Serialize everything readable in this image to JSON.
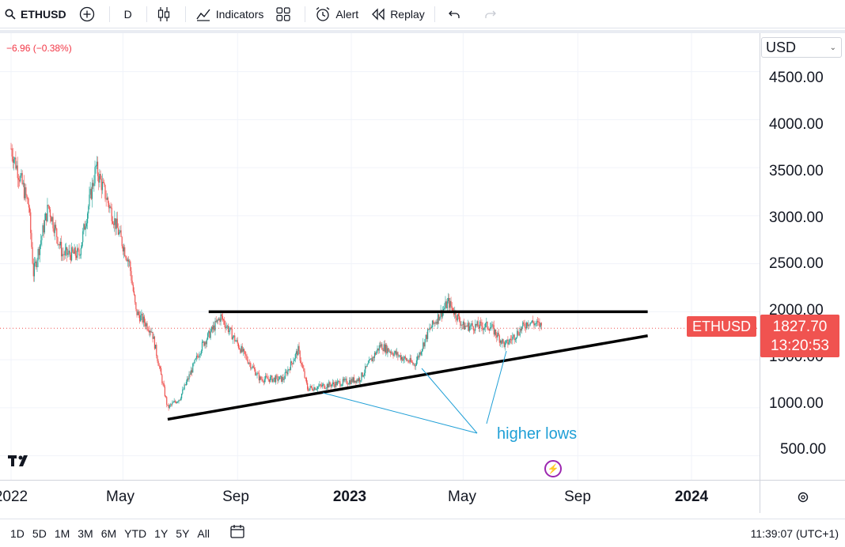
{
  "toolbar": {
    "symbol": "ETHUSD",
    "interval": "D",
    "indicators_label": "Indicators",
    "alert_label": "Alert",
    "replay_label": "Replay"
  },
  "change_label": "−6.96 (−0.38%)",
  "currency": "USD",
  "price_axis_labels": [
    "4500.00",
    "4000.00",
    "3500.00",
    "3000.00",
    "2500.00",
    "2000.00",
    "1500.00",
    "1000.00",
    "500.00"
  ],
  "time_axis_labels": [
    "2022",
    "May",
    "Sep",
    "2023",
    "May",
    "Sep",
    "2024"
  ],
  "symbol_badge": "ETHUSD",
  "last_price": "1827.70",
  "countdown": "13:20:53",
  "annotation": "higher lows",
  "logo_text": "TV",
  "date_ranges": [
    "1D",
    "5D",
    "1M",
    "3M",
    "6M",
    "YTD",
    "1Y",
    "5Y",
    "All"
  ],
  "clock": "11:39:07 (UTC+1)",
  "colors": {
    "up": "#26a69a",
    "down": "#ef5350",
    "badge": "#f05350",
    "annotation": "#1f9fd6"
  },
  "chart_data": {
    "type": "candlestick",
    "ylim": [
      250,
      4900
    ],
    "y_ticks": [
      500,
      1000,
      1500,
      2000,
      2500,
      3000,
      3500,
      4000,
      4500
    ],
    "last_price": 1827.7,
    "approx_close_path": [
      [
        "2022-01-01",
        3700
      ],
      [
        "2022-01-20",
        3100
      ],
      [
        "2022-01-25",
        2400
      ],
      [
        "2022-02-10",
        3100
      ],
      [
        "2022-02-25",
        2600
      ],
      [
        "2022-03-15",
        2600
      ],
      [
        "2022-04-02",
        3500
      ],
      [
        "2022-04-20",
        3000
      ],
      [
        "2022-05-08",
        2500
      ],
      [
        "2022-05-15",
        2000
      ],
      [
        "2022-06-01",
        1800
      ],
      [
        "2022-06-18",
        1000
      ],
      [
        "2022-07-01",
        1100
      ],
      [
        "2022-07-25",
        1650
      ],
      [
        "2022-08-14",
        1950
      ],
      [
        "2022-09-05",
        1600
      ],
      [
        "2022-09-25",
        1300
      ],
      [
        "2022-10-20",
        1300
      ],
      [
        "2022-11-05",
        1600
      ],
      [
        "2022-11-15",
        1200
      ],
      [
        "2022-12-15",
        1250
      ],
      [
        "2023-01-10",
        1300
      ],
      [
        "2023-02-01",
        1650
      ],
      [
        "2023-03-10",
        1450
      ],
      [
        "2023-03-25",
        1800
      ],
      [
        "2023-04-15",
        2100
      ],
      [
        "2023-05-01",
        1850
      ],
      [
        "2023-05-30",
        1850
      ],
      [
        "2023-06-15",
        1650
      ],
      [
        "2023-07-10",
        1900
      ],
      [
        "2023-07-25",
        1850
      ]
    ],
    "trendlines": [
      {
        "name": "resistance",
        "from": [
          "2022-08-01",
          2000
        ],
        "to": [
          "2023-11-15",
          2000
        ]
      },
      {
        "name": "support",
        "from": [
          "2022-06-18",
          880
        ],
        "to": [
          "2023-11-15",
          1750
        ]
      }
    ]
  }
}
